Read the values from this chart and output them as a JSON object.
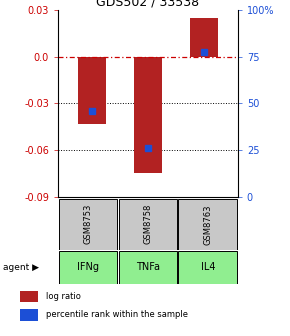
{
  "title": "GDS502 / 33538",
  "bar_values": [
    -0.043,
    -0.075,
    0.025
  ],
  "blue_marker_values": [
    -0.035,
    -0.059,
    0.003
  ],
  "categories": [
    "IFNg",
    "TNFa",
    "IL4"
  ],
  "gsm_labels": [
    "GSM8753",
    "GSM8758",
    "GSM8763"
  ],
  "ylim": [
    -0.09,
    0.03
  ],
  "yticks_left": [
    0.03,
    0.0,
    -0.03,
    -0.06,
    -0.09
  ],
  "yticks_right_vals": [
    0.03,
    0.0,
    -0.03,
    -0.06,
    -0.09
  ],
  "yticks_right_labels": [
    "100%",
    "75",
    "50",
    "25",
    "0"
  ],
  "bar_color": "#b22222",
  "blue_color": "#1c4fd6",
  "bar_width": 0.5,
  "zero_line_color": "#cc0000",
  "legend_red_label": "log ratio",
  "legend_blue_label": "percentile rank within the sample",
  "gsm_bg_color": "#c8c8c8",
  "agent_bg_color": "#90ee90",
  "title_fontsize": 9,
  "tick_fontsize": 7,
  "agent_fontsize": 7,
  "gsm_fontsize": 6
}
